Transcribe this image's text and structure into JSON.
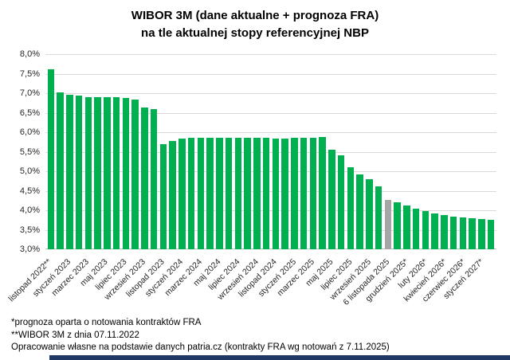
{
  "title": {
    "line1": "WIBOR 3M (dane aktualne + prognoza FRA)",
    "line2": "na tle aktualnej stopy referencyjnej NBP"
  },
  "footnotes": [
    "*prognoza oparta o notowania kontraktów FRA",
    "**WIBOR 3M z dnia 07.11.2022",
    "Opracowanie własne na podstawie danych patria.cz (kontrakty FRA wg notowań z 7.11.2025)"
  ],
  "colors": {
    "bar_green": "#00b050",
    "bar_gray": "#a6a6a6",
    "gridline": "#d9d9d9",
    "bottom_strip": "#203864"
  },
  "chart_data": {
    "type": "bar",
    "title": "WIBOR 3M (dane aktualne + prognoza FRA) na tle aktualnej stopy referencyjnej NBP",
    "xlabel": "",
    "ylabel": "",
    "ylim": [
      3.0,
      8.0
    ],
    "ytick_step": 0.5,
    "ytick_labels": [
      "8,0%",
      "7,5%",
      "7,0%",
      "6,5%",
      "6,0%",
      "5,5%",
      "5,0%",
      "4,5%",
      "4,0%",
      "3,5%",
      "3,0%"
    ],
    "grid": true,
    "legend": "none",
    "bar_color": "#00b050",
    "highlight_color": "#a6a6a6",
    "highlight_meaning": "aktualna stopa referencyjna NBP",
    "bars": [
      {
        "value": 7.61,
        "label": "listopad 2022**"
      },
      {
        "value": 7.02,
        "label": ""
      },
      {
        "value": 6.95,
        "label": "styczeń 2023"
      },
      {
        "value": 6.93,
        "label": ""
      },
      {
        "value": 6.9,
        "label": "marzec 2023"
      },
      {
        "value": 6.9,
        "label": ""
      },
      {
        "value": 6.9,
        "label": "maj 2023"
      },
      {
        "value": 6.9,
        "label": ""
      },
      {
        "value": 6.88,
        "label": "lipiec 2023"
      },
      {
        "value": 6.84,
        "label": ""
      },
      {
        "value": 6.63,
        "label": "wrzesień 2023"
      },
      {
        "value": 6.6,
        "label": ""
      },
      {
        "value": 5.7,
        "label": "listopad 2023"
      },
      {
        "value": 5.78,
        "label": ""
      },
      {
        "value": 5.84,
        "label": "styczeń 2024"
      },
      {
        "value": 5.86,
        "label": ""
      },
      {
        "value": 5.86,
        "label": "marzec 2024"
      },
      {
        "value": 5.85,
        "label": ""
      },
      {
        "value": 5.85,
        "label": "maj 2024"
      },
      {
        "value": 5.85,
        "label": ""
      },
      {
        "value": 5.85,
        "label": "lipiec 2024"
      },
      {
        "value": 5.86,
        "label": ""
      },
      {
        "value": 5.85,
        "label": "wrzesień 2024"
      },
      {
        "value": 5.85,
        "label": ""
      },
      {
        "value": 5.84,
        "label": "listopad 2024"
      },
      {
        "value": 5.84,
        "label": ""
      },
      {
        "value": 5.85,
        "label": "styczeń 2025"
      },
      {
        "value": 5.85,
        "label": ""
      },
      {
        "value": 5.86,
        "label": "marzec 2025"
      },
      {
        "value": 5.87,
        "label": ""
      },
      {
        "value": 5.55,
        "label": "maj 2025"
      },
      {
        "value": 5.41,
        "label": ""
      },
      {
        "value": 5.1,
        "label": "lipiec 2025"
      },
      {
        "value": 4.92,
        "label": ""
      },
      {
        "value": 4.8,
        "label": "wrzesień 2025"
      },
      {
        "value": 4.62,
        "label": ""
      },
      {
        "value": 4.27,
        "label": "6 listopada 2025",
        "highlight": true
      },
      {
        "value": 4.2,
        "label": ""
      },
      {
        "value": 4.13,
        "label": "grudzień 2025*"
      },
      {
        "value": 4.04,
        "label": ""
      },
      {
        "value": 3.97,
        "label": "luty 2026*"
      },
      {
        "value": 3.92,
        "label": ""
      },
      {
        "value": 3.88,
        "label": "kwiecień 2026*"
      },
      {
        "value": 3.84,
        "label": ""
      },
      {
        "value": 3.81,
        "label": "czerwiec 2026*"
      },
      {
        "value": 3.79,
        "label": ""
      },
      {
        "value": 3.77,
        "label": "styczeń 2027*"
      },
      {
        "value": 3.76,
        "label": ""
      }
    ]
  }
}
